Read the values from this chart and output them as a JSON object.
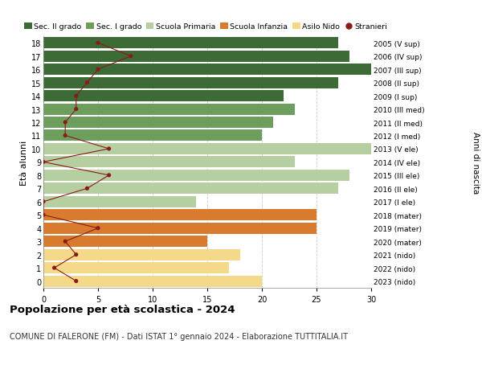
{
  "ages": [
    18,
    17,
    16,
    15,
    14,
    13,
    12,
    11,
    10,
    9,
    8,
    7,
    6,
    5,
    4,
    3,
    2,
    1,
    0
  ],
  "anni_nascita": [
    "2005 (V sup)",
    "2006 (IV sup)",
    "2007 (III sup)",
    "2008 (II sup)",
    "2009 (I sup)",
    "2010 (III med)",
    "2011 (II med)",
    "2012 (I med)",
    "2013 (V ele)",
    "2014 (IV ele)",
    "2015 (III ele)",
    "2016 (II ele)",
    "2017 (I ele)",
    "2018 (mater)",
    "2019 (mater)",
    "2020 (mater)",
    "2021 (nido)",
    "2022 (nido)",
    "2023 (nido)"
  ],
  "bar_values": [
    27,
    28,
    31,
    27,
    22,
    23,
    21,
    20,
    31,
    23,
    28,
    27,
    14,
    25,
    25,
    15,
    18,
    17,
    20
  ],
  "bar_colors": [
    "#3d6b35",
    "#3d6b35",
    "#3d6b35",
    "#3d6b35",
    "#3d6b35",
    "#6e9e5e",
    "#6e9e5e",
    "#6e9e5e",
    "#b5cfa0",
    "#b5cfa0",
    "#b5cfa0",
    "#b5cfa0",
    "#b5cfa0",
    "#d97b2e",
    "#d97b2e",
    "#d97b2e",
    "#f5d98b",
    "#f5d98b",
    "#f5d98b"
  ],
  "stranieri_values": [
    5,
    8,
    5,
    4,
    3,
    3,
    2,
    2,
    6,
    0,
    6,
    4,
    0,
    0,
    5,
    2,
    3,
    1,
    3
  ],
  "legend_labels": [
    "Sec. II grado",
    "Sec. I grado",
    "Scuola Primaria",
    "Scuola Infanzia",
    "Asilo Nido",
    "Stranieri"
  ],
  "legend_colors": [
    "#3d6b35",
    "#6e9e5e",
    "#b5cfa0",
    "#d97b2e",
    "#f5d98b",
    "#9b1c1c"
  ],
  "title_bold": "Popolazione per età scolastica - 2024",
  "subtitle": "COMUNE DI FALERONE (FM) - Dati ISTAT 1° gennaio 2024 - Elaborazione TUTTITALIA.IT",
  "ylabel_left": "Età alunni",
  "ylabel_right": "Anni di nascita",
  "xlim": [
    0,
    30
  ],
  "background_color": "#ffffff",
  "grid_color": "#cccccc",
  "stranieri_color": "#8b1a1a"
}
